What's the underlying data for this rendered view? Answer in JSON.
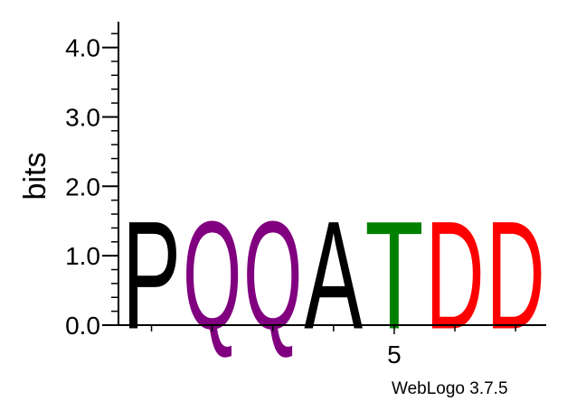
{
  "chart_data": {
    "type": "sequence_logo",
    "ylabel": "bits",
    "ylim": [
      0,
      4.32
    ],
    "y_ticks": [
      "0.0",
      "1.0",
      "2.0",
      "3.0",
      "4.0"
    ],
    "y_tick_values": [
      0,
      1,
      2,
      3,
      4
    ],
    "x_ticks": [
      "5"
    ],
    "x_tick_values": [
      5
    ],
    "positions": [
      {
        "position": 1,
        "letter": "P",
        "bits": 1.79,
        "color": "#000000"
      },
      {
        "position": 2,
        "letter": "Q",
        "bits": 1.79,
        "color": "#800080"
      },
      {
        "position": 3,
        "letter": "Q",
        "bits": 1.79,
        "color": "#800080"
      },
      {
        "position": 4,
        "letter": "A",
        "bits": 1.79,
        "color": "#000000"
      },
      {
        "position": 5,
        "letter": "T",
        "bits": 1.79,
        "color": "#008000"
      },
      {
        "position": 6,
        "letter": "D",
        "bits": 1.79,
        "color": "#ff0000"
      },
      {
        "position": 7,
        "letter": "D",
        "bits": 1.79,
        "color": "#ff0000"
      }
    ],
    "credit": "WebLogo 3.7.5"
  }
}
